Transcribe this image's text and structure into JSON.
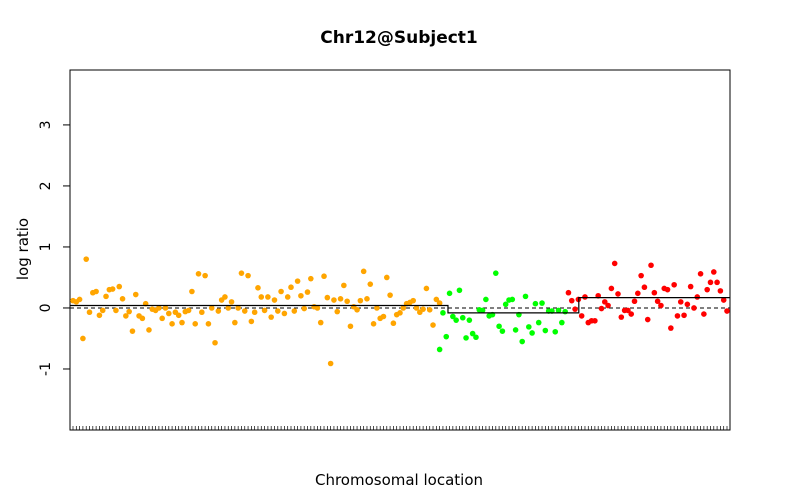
{
  "chart_data": {
    "type": "scatter",
    "title": "Chr12@Subject1",
    "xlabel": "Chromosomal location",
    "ylabel": "log ratio",
    "ylim": [
      -2,
      3.9
    ],
    "y_ticks": [
      "-1",
      "0",
      "1",
      "2",
      "3"
    ],
    "y_tick_values": [
      -1,
      0,
      1,
      2,
      3
    ],
    "reference_line": 0,
    "grid": false,
    "legend": "none",
    "segments": [
      {
        "color": "#ffa500",
        "y": 0.04,
        "x_start": 0,
        "x_end": 130
      },
      {
        "color": "#00ff00",
        "y": -0.08,
        "x_start": 130,
        "x_end": 175
      },
      {
        "color": "#ff0000",
        "y": 0.17,
        "x_start": 175,
        "x_end": 227
      }
    ],
    "series": [
      {
        "color": "#ffa500",
        "values": [
          0.12,
          0.1,
          0.14,
          -0.5,
          0.8,
          -0.07,
          0.25,
          0.27,
          -0.12,
          -0.04,
          0.19,
          0.3,
          0.31,
          -0.04,
          0.35,
          0.15,
          -0.13,
          -0.06,
          -0.38,
          0.22,
          -0.13,
          -0.17,
          0.07,
          -0.36,
          -0.02,
          -0.04,
          0.0,
          -0.17,
          0.0,
          -0.09,
          -0.26,
          -0.07,
          -0.12,
          -0.24,
          -0.06,
          -0.04,
          0.27,
          -0.26,
          0.56,
          -0.07,
          0.53,
          -0.26,
          0.0,
          -0.57,
          -0.05,
          0.13,
          0.18,
          0.0,
          0.1,
          -0.24,
          0.0,
          0.57,
          -0.05,
          0.53,
          -0.22,
          -0.07,
          0.33,
          0.18,
          -0.04,
          0.18,
          -0.15,
          0.13,
          -0.05,
          0.27,
          -0.09,
          0.18,
          0.34,
          -0.05,
          0.44,
          0.2,
          -0.01,
          0.26,
          0.48,
          0.02,
          0.0,
          -0.24,
          0.52,
          0.17,
          -0.91,
          0.13,
          -0.06,
          0.15,
          0.37,
          0.11,
          -0.3,
          0.02,
          -0.03,
          0.12,
          0.6,
          0.15,
          0.39,
          -0.26,
          0.0,
          -0.17,
          -0.14,
          0.5,
          0.21,
          -0.25,
          -0.11,
          -0.08,
          0.0,
          0.07,
          0.09,
          0.12,
          0.0,
          -0.07,
          -0.02,
          0.32,
          -0.03,
          -0.28,
          0.14,
          0.08
        ],
        "x": [
          0,
          1,
          2,
          3,
          4,
          5,
          6,
          7,
          8,
          9,
          10,
          11,
          12,
          13,
          14,
          15,
          16,
          17,
          18,
          19,
          20,
          21,
          22,
          23,
          24,
          25,
          26,
          27,
          28,
          29,
          30,
          31,
          32,
          33,
          34,
          35,
          36,
          37,
          38,
          39,
          40,
          41,
          42,
          43,
          44,
          45,
          46,
          47,
          48,
          49,
          50,
          51,
          52,
          53,
          54,
          55,
          56,
          57,
          58,
          59,
          60,
          61,
          62,
          63,
          64,
          65,
          66,
          67,
          68,
          69,
          70,
          71,
          72,
          73,
          74,
          75,
          76,
          77,
          78,
          79,
          80,
          81,
          82,
          83,
          84,
          85,
          86,
          87,
          88,
          89,
          90,
          91,
          92,
          93,
          94,
          95,
          96,
          97,
          98,
          99,
          100,
          101,
          102,
          103,
          104,
          105,
          106,
          107,
          108,
          109,
          110,
          111
        ]
      },
      {
        "color": "#00ff00",
        "values": [
          -0.68,
          -0.08,
          -0.47,
          0.24,
          -0.14,
          -0.2,
          0.29,
          -0.16,
          -0.49,
          -0.2,
          -0.42,
          -0.48,
          -0.03,
          -0.04,
          0.14,
          -0.13,
          -0.11,
          0.57,
          -0.3,
          -0.38,
          0.06,
          0.13,
          0.14,
          -0.36,
          -0.11,
          -0.55,
          0.19,
          -0.31,
          -0.41,
          0.07,
          -0.24,
          0.08,
          -0.37,
          -0.05,
          -0.05,
          -0.39,
          -0.04,
          -0.24,
          -0.06
        ],
        "x": [
          111,
          112,
          113,
          114,
          115,
          116,
          117,
          118,
          119,
          120,
          121,
          122,
          123,
          124,
          125,
          126,
          127,
          128,
          129,
          130,
          131,
          132,
          133,
          134,
          135,
          136,
          137,
          138,
          139,
          140,
          141,
          142,
          143,
          144,
          145,
          146,
          147,
          148,
          149
        ]
      },
      {
        "color": "#ff0000",
        "values": [
          0.25,
          0.12,
          -0.02,
          0.14,
          -0.13,
          0.18,
          -0.24,
          -0.21,
          -0.21,
          0.2,
          -0.01,
          0.1,
          0.04,
          0.32,
          0.73,
          0.23,
          -0.15,
          -0.04,
          -0.04,
          -0.1,
          0.11,
          0.24,
          0.53,
          0.34,
          -0.19,
          0.7,
          0.25,
          0.11,
          0.04,
          0.32,
          0.3,
          -0.33,
          0.38,
          -0.13,
          0.1,
          -0.12,
          0.06,
          0.35,
          0.0,
          0.18,
          0.56,
          -0.1,
          0.3,
          0.42,
          0.59,
          0.42,
          0.28,
          0.13,
          -0.05
        ],
        "x": [
          150,
          151,
          152,
          153,
          154,
          155,
          156,
          157,
          158,
          159,
          160,
          161,
          162,
          163,
          164,
          165,
          166,
          167,
          168,
          169,
          170,
          171,
          172,
          173,
          174,
          175,
          176,
          177,
          178,
          179,
          180,
          181,
          182,
          183,
          184,
          185,
          186,
          187,
          188,
          189,
          190,
          191,
          192,
          193,
          194,
          195,
          196,
          197,
          198
        ]
      }
    ],
    "x_count": 199
  }
}
